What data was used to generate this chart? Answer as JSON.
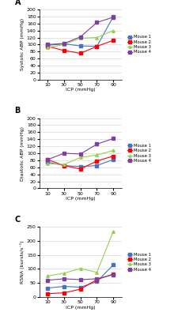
{
  "x": [
    10,
    30,
    50,
    70,
    90
  ],
  "panel_A": {
    "title": "A",
    "ylabel": "Systolic ABP (mmHg)",
    "xlabel": "ICP (mmHg)",
    "ylim": [
      0,
      200
    ],
    "yticks": [
      0,
      20,
      40,
      60,
      80,
      100,
      120,
      140,
      160,
      180,
      200
    ],
    "mouse1": [
      98,
      102,
      96,
      95,
      180
    ],
    "mouse2": [
      95,
      83,
      75,
      95,
      112
    ],
    "mouse3": [
      92,
      100,
      118,
      120,
      140
    ],
    "mouse4": [
      100,
      103,
      122,
      163,
      178
    ]
  },
  "panel_B": {
    "title": "B",
    "ylabel": "Diastolic ABP (mmHg)",
    "xlabel": "ICP (mmHg)",
    "ylim": [
      0,
      200
    ],
    "yticks": [
      0,
      20,
      40,
      60,
      80,
      100,
      120,
      140,
      160,
      180,
      200
    ],
    "mouse1": [
      75,
      65,
      62,
      65,
      82
    ],
    "mouse2": [
      82,
      65,
      55,
      78,
      92
    ],
    "mouse3": [
      70,
      68,
      88,
      95,
      108
    ],
    "mouse4": [
      82,
      100,
      98,
      126,
      142
    ]
  },
  "panel_C": {
    "title": "C",
    "ylabel": "RSNA (bursts/s⁻¹)",
    "xlabel": "ICP (mmHg)",
    "ylim": [
      0,
      250
    ],
    "yticks": [
      0,
      50,
      100,
      150,
      200,
      250
    ],
    "mouse1": [
      32,
      38,
      35,
      55,
      115
    ],
    "mouse2": [
      12,
      15,
      28,
      62,
      82
    ],
    "mouse3": [
      75,
      85,
      102,
      88,
      235
    ],
    "mouse4": [
      60,
      65,
      62,
      65,
      80
    ]
  },
  "colors": {
    "mouse1": "#4472C4",
    "mouse2": "#FF0000",
    "mouse3": "#92D050",
    "mouse4": "#7F3F9F"
  },
  "legend_labels": [
    "Mouse 1",
    "Mouse 2",
    "Mouse 3",
    "Mouse 4"
  ],
  "bg_color": "#ffffff",
  "grid_color": "#d0d0d0"
}
